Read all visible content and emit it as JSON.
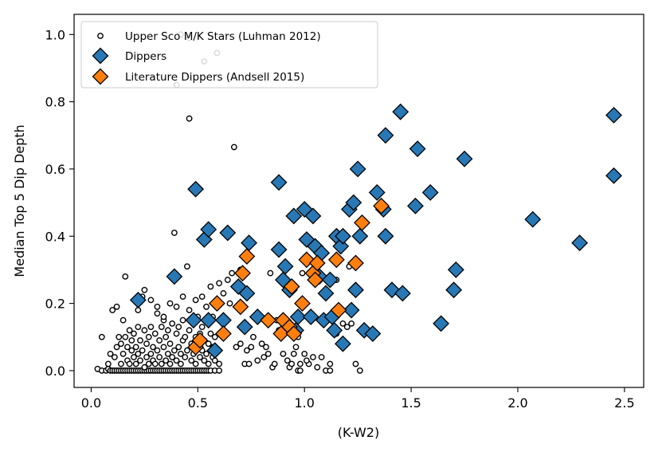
{
  "chart_data": {
    "type": "scatter",
    "xlabel": "(K-W2)",
    "ylabel": "Median Top 5 Dip Depth",
    "xlim": [
      -0.08,
      2.59
    ],
    "ylim": [
      -0.05,
      1.06
    ],
    "xticks": [
      "0.0",
      "0.5",
      "1.0",
      "1.5",
      "2.0",
      "2.5"
    ],
    "xtick_values": [
      0.0,
      0.5,
      1.0,
      1.5,
      2.0,
      2.5
    ],
    "yticks": [
      "0.0",
      "0.2",
      "0.4",
      "0.6",
      "0.8",
      "1.0"
    ],
    "ytick_values": [
      0.0,
      0.2,
      0.4,
      0.6,
      0.8,
      1.0
    ],
    "legend_position": "upper-left",
    "series": [
      {
        "name": "Upper Sco M/K Stars (Luhman 2012)",
        "marker": "circle",
        "color": "#ffffff",
        "edge": "#000000",
        "points": [
          [
            0.03,
            0.005
          ],
          [
            0.05,
            0.0
          ],
          [
            0.07,
            0.0
          ],
          [
            0.08,
            0.005
          ],
          [
            0.09,
            0.0
          ],
          [
            0.1,
            0.0
          ],
          [
            0.11,
            0.0
          ],
          [
            0.12,
            0.0
          ],
          [
            0.13,
            0.0
          ],
          [
            0.14,
            0.0
          ],
          [
            0.15,
            0.0
          ],
          [
            0.16,
            0.0
          ],
          [
            0.17,
            0.0
          ],
          [
            0.18,
            0.0
          ],
          [
            0.19,
            0.0
          ],
          [
            0.2,
            0.0
          ],
          [
            0.21,
            0.0
          ],
          [
            0.22,
            0.0
          ],
          [
            0.23,
            0.0
          ],
          [
            0.24,
            0.0
          ],
          [
            0.25,
            0.0
          ],
          [
            0.26,
            0.0
          ],
          [
            0.27,
            0.0
          ],
          [
            0.28,
            0.0
          ],
          [
            0.29,
            0.0
          ],
          [
            0.3,
            0.0
          ],
          [
            0.31,
            0.0
          ],
          [
            0.32,
            0.0
          ],
          [
            0.33,
            0.0
          ],
          [
            0.34,
            0.0
          ],
          [
            0.35,
            0.0
          ],
          [
            0.36,
            0.0
          ],
          [
            0.37,
            0.0
          ],
          [
            0.38,
            0.0
          ],
          [
            0.39,
            0.0
          ],
          [
            0.4,
            0.0
          ],
          [
            0.41,
            0.0
          ],
          [
            0.42,
            0.0
          ],
          [
            0.43,
            0.0
          ],
          [
            0.44,
            0.0
          ],
          [
            0.45,
            0.0
          ],
          [
            0.46,
            0.0
          ],
          [
            0.47,
            0.0
          ],
          [
            0.48,
            0.0
          ],
          [
            0.49,
            0.0
          ],
          [
            0.5,
            0.0
          ],
          [
            0.51,
            0.0
          ],
          [
            0.52,
            0.0
          ],
          [
            0.53,
            0.0
          ],
          [
            0.54,
            0.0
          ],
          [
            0.55,
            0.0
          ],
          [
            0.56,
            0.0
          ],
          [
            0.58,
            0.0
          ],
          [
            0.6,
            0.0
          ],
          [
            0.05,
            0.1
          ],
          [
            0.08,
            0.02
          ],
          [
            0.09,
            0.05
          ],
          [
            0.1,
            0.18
          ],
          [
            0.11,
            0.04
          ],
          [
            0.12,
            0.07
          ],
          [
            0.12,
            0.19
          ],
          [
            0.13,
            0.1
          ],
          [
            0.14,
            0.02
          ],
          [
            0.14,
            0.08
          ],
          [
            0.15,
            0.15
          ],
          [
            0.15,
            0.05
          ],
          [
            0.16,
            0.28
          ],
          [
            0.16,
            0.1
          ],
          [
            0.17,
            0.03
          ],
          [
            0.17,
            0.07
          ],
          [
            0.18,
            0.12
          ],
          [
            0.18,
            0.02
          ],
          [
            0.19,
            0.06
          ],
          [
            0.19,
            0.09
          ],
          [
            0.2,
            0.04
          ],
          [
            0.2,
            0.11
          ],
          [
            0.21,
            0.02
          ],
          [
            0.21,
            0.07
          ],
          [
            0.22,
            0.13
          ],
          [
            0.22,
            0.05
          ],
          [
            0.23,
            0.03
          ],
          [
            0.23,
            0.09
          ],
          [
            0.24,
            0.22
          ],
          [
            0.24,
            0.06
          ],
          [
            0.25,
            0.01
          ],
          [
            0.25,
            0.12
          ],
          [
            0.26,
            0.08
          ],
          [
            0.26,
            0.04
          ],
          [
            0.27,
            0.02
          ],
          [
            0.27,
            0.1
          ],
          [
            0.28,
            0.05
          ],
          [
            0.28,
            0.13
          ],
          [
            0.29,
            0.03
          ],
          [
            0.29,
            0.07
          ],
          [
            0.3,
            0.11
          ],
          [
            0.3,
            0.02
          ],
          [
            0.31,
            0.06
          ],
          [
            0.31,
            0.19
          ],
          [
            0.32,
            0.04
          ],
          [
            0.32,
            0.09
          ],
          [
            0.33,
            0.13
          ],
          [
            0.33,
            0.02
          ],
          [
            0.34,
            0.07
          ],
          [
            0.34,
            0.15
          ],
          [
            0.35,
            0.03
          ],
          [
            0.35,
            0.1
          ],
          [
            0.36,
            0.05
          ],
          [
            0.36,
            0.12
          ],
          [
            0.37,
            0.02
          ],
          [
            0.37,
            0.08
          ],
          [
            0.38,
            0.14
          ],
          [
            0.38,
            0.04
          ],
          [
            0.39,
            0.06
          ],
          [
            0.39,
            0.41
          ],
          [
            0.4,
            0.03
          ],
          [
            0.4,
            0.11
          ],
          [
            0.41,
            0.07
          ],
          [
            0.41,
            0.13
          ],
          [
            0.42,
            0.02
          ],
          [
            0.42,
            0.05
          ],
          [
            0.43,
            0.09
          ],
          [
            0.43,
            0.15
          ],
          [
            0.44,
            0.04
          ],
          [
            0.44,
            0.1
          ],
          [
            0.45,
            0.06
          ],
          [
            0.45,
            0.31
          ],
          [
            0.46,
            0.75
          ],
          [
            0.46,
            0.12
          ],
          [
            0.47,
            0.03
          ],
          [
            0.47,
            0.08
          ],
          [
            0.48,
            0.05
          ],
          [
            0.48,
            0.14
          ],
          [
            0.49,
            0.02
          ],
          [
            0.49,
            0.1
          ],
          [
            0.5,
            0.07
          ],
          [
            0.5,
            0.16
          ],
          [
            0.51,
            0.04
          ],
          [
            0.51,
            0.11
          ],
          [
            0.52,
            0.06
          ],
          [
            0.52,
            0.13
          ],
          [
            0.53,
            0.03
          ],
          [
            0.53,
            0.09
          ],
          [
            0.54,
            0.05
          ],
          [
            0.54,
            0.15
          ],
          [
            0.55,
            0.02
          ],
          [
            0.55,
            0.08
          ],
          [
            0.56,
            0.25
          ],
          [
            0.56,
            0.11
          ],
          [
            0.57,
            0.04
          ],
          [
            0.57,
            0.07
          ],
          [
            0.58,
            0.1
          ],
          [
            0.58,
            0.03
          ],
          [
            0.59,
            0.06
          ],
          [
            0.6,
            0.02
          ],
          [
            0.22,
            0.18
          ],
          [
            0.25,
            0.24
          ],
          [
            0.28,
            0.21
          ],
          [
            0.31,
            0.17
          ],
          [
            0.34,
            0.16
          ],
          [
            0.37,
            0.2
          ],
          [
            0.4,
            0.19
          ],
          [
            0.43,
            0.22
          ],
          [
            0.46,
            0.18
          ],
          [
            0.49,
            0.21
          ],
          [
            0.52,
            0.22
          ],
          [
            0.54,
            0.19
          ],
          [
            0.57,
            0.16
          ],
          [
            0.6,
            0.26
          ],
          [
            0.62,
            0.23
          ],
          [
            0.64,
            0.27
          ],
          [
            0.66,
            0.29
          ],
          [
            0.68,
            0.25
          ],
          [
            0.7,
            0.3
          ],
          [
            0.67,
            0.665
          ],
          [
            0.4,
            0.85
          ],
          [
            0.42,
            1.0
          ],
          [
            0.46,
            0.99
          ],
          [
            0.53,
            0.92
          ],
          [
            0.59,
            0.945
          ],
          [
            0.65,
            0.2
          ],
          [
            0.68,
            0.07
          ],
          [
            0.7,
            0.08
          ],
          [
            0.72,
            0.02
          ],
          [
            0.73,
            0.06
          ],
          [
            0.74,
            0.02
          ],
          [
            0.75,
            0.07
          ],
          [
            0.76,
            0.1
          ],
          [
            0.78,
            0.03
          ],
          [
            0.8,
            0.08
          ],
          [
            0.81,
            0.04
          ],
          [
            0.82,
            0.07
          ],
          [
            0.83,
            0.05
          ],
          [
            0.85,
            0.01
          ],
          [
            0.86,
            0.02
          ],
          [
            0.87,
            0.15
          ],
          [
            0.88,
            0.12
          ],
          [
            0.9,
            0.05
          ],
          [
            0.92,
            0.03
          ],
          [
            0.93,
            0.01
          ],
          [
            0.94,
            0.02
          ],
          [
            0.95,
            0.05
          ],
          [
            0.96,
            0.07
          ],
          [
            0.97,
            0.0
          ],
          [
            0.98,
            0.02
          ],
          [
            1.0,
            0.05
          ],
          [
            1.02,
            0.02
          ],
          [
            1.04,
            0.04
          ],
          [
            1.06,
            0.01
          ],
          [
            1.08,
            0.04
          ],
          [
            1.1,
            0.0
          ],
          [
            1.12,
            0.02
          ],
          [
            1.15,
            0.11
          ],
          [
            1.18,
            0.14
          ],
          [
            1.2,
            0.13
          ],
          [
            1.22,
            0.14
          ],
          [
            1.24,
            0.02
          ],
          [
            1.26,
            0.0
          ],
          [
            0.98,
            0.0
          ],
          [
            1.12,
            0.0
          ],
          [
            1.01,
            0.03
          ],
          [
            0.97,
            0.1
          ],
          [
            0.84,
            0.29
          ],
          [
            0.99,
            0.29
          ],
          [
            1.05,
            0.26
          ],
          [
            1.15,
            0.27
          ],
          [
            1.21,
            0.31
          ]
        ]
      },
      {
        "name": "Dippers",
        "marker": "diamond",
        "color": "#2878b5",
        "edge": "#000000",
        "points": [
          [
            0.22,
            0.21
          ],
          [
            0.39,
            0.28
          ],
          [
            0.49,
            0.54
          ],
          [
            0.48,
            0.15
          ],
          [
            0.53,
            0.39
          ],
          [
            0.55,
            0.42
          ],
          [
            0.55,
            0.15
          ],
          [
            0.58,
            0.06
          ],
          [
            0.62,
            0.15
          ],
          [
            0.64,
            0.41
          ],
          [
            0.69,
            0.25
          ],
          [
            0.72,
            0.13
          ],
          [
            0.73,
            0.23
          ],
          [
            0.74,
            0.38
          ],
          [
            0.78,
            0.16
          ],
          [
            0.88,
            0.36
          ],
          [
            0.88,
            0.56
          ],
          [
            0.9,
            0.27
          ],
          [
            0.91,
            0.31
          ],
          [
            0.93,
            0.24
          ],
          [
            0.95,
            0.46
          ],
          [
            0.96,
            0.12
          ],
          [
            0.97,
            0.16
          ],
          [
            1.0,
            0.48
          ],
          [
            1.01,
            0.39
          ],
          [
            1.03,
            0.16
          ],
          [
            1.04,
            0.46
          ],
          [
            1.05,
            0.37
          ],
          [
            1.07,
            0.28
          ],
          [
            1.08,
            0.35
          ],
          [
            1.09,
            0.15
          ],
          [
            1.1,
            0.23
          ],
          [
            1.12,
            0.27
          ],
          [
            1.13,
            0.16
          ],
          [
            1.14,
            0.12
          ],
          [
            1.15,
            0.4
          ],
          [
            1.17,
            0.37
          ],
          [
            1.18,
            0.4
          ],
          [
            1.18,
            0.08
          ],
          [
            1.21,
            0.48
          ],
          [
            1.22,
            0.18
          ],
          [
            1.23,
            0.5
          ],
          [
            1.24,
            0.24
          ],
          [
            1.25,
            0.6
          ],
          [
            1.26,
            0.4
          ],
          [
            1.28,
            0.12
          ],
          [
            1.32,
            0.11
          ],
          [
            1.34,
            0.53
          ],
          [
            1.37,
            0.48
          ],
          [
            1.38,
            0.4
          ],
          [
            1.38,
            0.7
          ],
          [
            1.41,
            0.24
          ],
          [
            1.45,
            0.77
          ],
          [
            1.46,
            0.23
          ],
          [
            1.52,
            0.49
          ],
          [
            1.53,
            0.66
          ],
          [
            1.59,
            0.53
          ],
          [
            1.64,
            0.14
          ],
          [
            1.7,
            0.24
          ],
          [
            1.71,
            0.3
          ],
          [
            1.75,
            0.63
          ],
          [
            2.07,
            0.45
          ],
          [
            2.29,
            0.38
          ],
          [
            2.45,
            0.58
          ],
          [
            2.45,
            0.76
          ]
        ]
      },
      {
        "name": "Literature Dippers (Andsell 2015)",
        "marker": "diamond",
        "color": "#ff7f0e",
        "edge": "#000000",
        "points": [
          [
            0.49,
            0.07
          ],
          [
            0.51,
            0.09
          ],
          [
            0.59,
            0.2
          ],
          [
            0.62,
            0.11
          ],
          [
            0.7,
            0.19
          ],
          [
            0.71,
            0.29
          ],
          [
            0.73,
            0.34
          ],
          [
            0.83,
            0.15
          ],
          [
            0.89,
            0.11
          ],
          [
            0.9,
            0.15
          ],
          [
            0.93,
            0.13
          ],
          [
            0.94,
            0.25
          ],
          [
            0.95,
            0.11
          ],
          [
            0.99,
            0.2
          ],
          [
            1.01,
            0.33
          ],
          [
            1.04,
            0.29
          ],
          [
            1.05,
            0.27
          ],
          [
            1.06,
            0.32
          ],
          [
            1.15,
            0.33
          ],
          [
            1.16,
            0.18
          ],
          [
            1.24,
            0.32
          ],
          [
            1.27,
            0.44
          ],
          [
            1.36,
            0.49
          ]
        ]
      }
    ]
  }
}
